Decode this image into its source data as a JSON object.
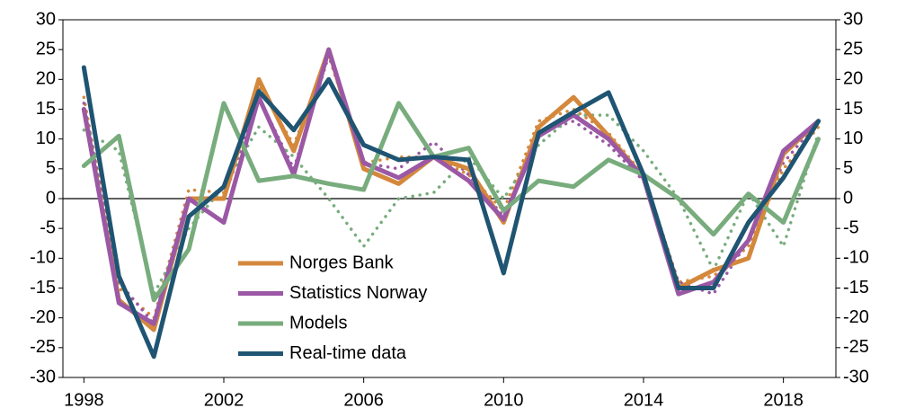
{
  "chart_data": {
    "type": "line",
    "x": [
      1998,
      1999,
      2000,
      2001,
      2002,
      2003,
      2004,
      2005,
      2006,
      2007,
      2008,
      2009,
      2010,
      2011,
      2012,
      2013,
      2014,
      2015,
      2016,
      2017,
      2018,
      2019
    ],
    "xlim": [
      1997.4,
      2019.5
    ],
    "xticks": [
      1998,
      2002,
      2006,
      2010,
      2014,
      2018
    ],
    "ylim": [
      -30,
      30
    ],
    "yticks": [
      -30,
      -25,
      -20,
      -15,
      -10,
      -5,
      0,
      5,
      10,
      15,
      20,
      25,
      30
    ],
    "right_axis": true,
    "zero_line": true,
    "series": [
      {
        "name": "Norges Bank",
        "color": "#d4883c",
        "values": [
          15,
          -17,
          -22,
          0,
          0,
          20,
          8,
          25,
          5,
          2.5,
          7,
          5,
          -4,
          12,
          17,
          10.5,
          3.5,
          -15,
          -12,
          -10,
          7.5,
          13
        ]
      },
      {
        "name": "Statistics Norway",
        "color": "#9b58a5",
        "values": [
          15,
          -17.5,
          -21,
          0,
          -4,
          17,
          4,
          25,
          6,
          3.5,
          7,
          3,
          -3.5,
          10.5,
          14,
          10,
          3.5,
          -16,
          -14,
          -7,
          8,
          13
        ]
      },
      {
        "name": "Models",
        "color": "#78ac7d",
        "values": [
          5.5,
          10.5,
          -17,
          -8.5,
          16,
          3,
          3.8,
          2.5,
          1.5,
          16,
          7,
          8.5,
          -2,
          3,
          2,
          6.5,
          4,
          0,
          -6,
          0.8,
          -4,
          10
        ]
      },
      {
        "name": "Real-time data",
        "color": "#1f5472",
        "values": [
          22,
          -13,
          -26.5,
          -3,
          2,
          18,
          11.5,
          20,
          9,
          6.5,
          7,
          6.5,
          -12.5,
          11,
          14.5,
          17.8,
          4,
          -15,
          -15,
          -4,
          3.5,
          13
        ]
      },
      {
        "color": "#d4883c",
        "dash": "dotted",
        "values": [
          17,
          -15,
          -20,
          1.5,
          1,
          19,
          9,
          24,
          6,
          7,
          7,
          4,
          -2,
          13,
          15,
          11,
          4,
          -14,
          -13,
          -8,
          5,
          12
        ]
      },
      {
        "color": "#9b58a5",
        "dash": "dotted",
        "values": [
          16,
          -14,
          -21,
          0,
          0,
          17,
          5,
          24,
          6,
          5,
          9.5,
          4,
          -3,
          11,
          13,
          9,
          3,
          -14,
          -16,
          -7,
          6,
          13
        ]
      },
      {
        "color": "#78ac7d",
        "dash": "dotted",
        "values": [
          11.5,
          8,
          -16,
          -5,
          2,
          12,
          7,
          0,
          -8,
          0,
          1,
          7,
          0,
          9,
          14,
          14,
          8,
          0,
          -12,
          1,
          -8,
          11
        ]
      }
    ]
  }
}
